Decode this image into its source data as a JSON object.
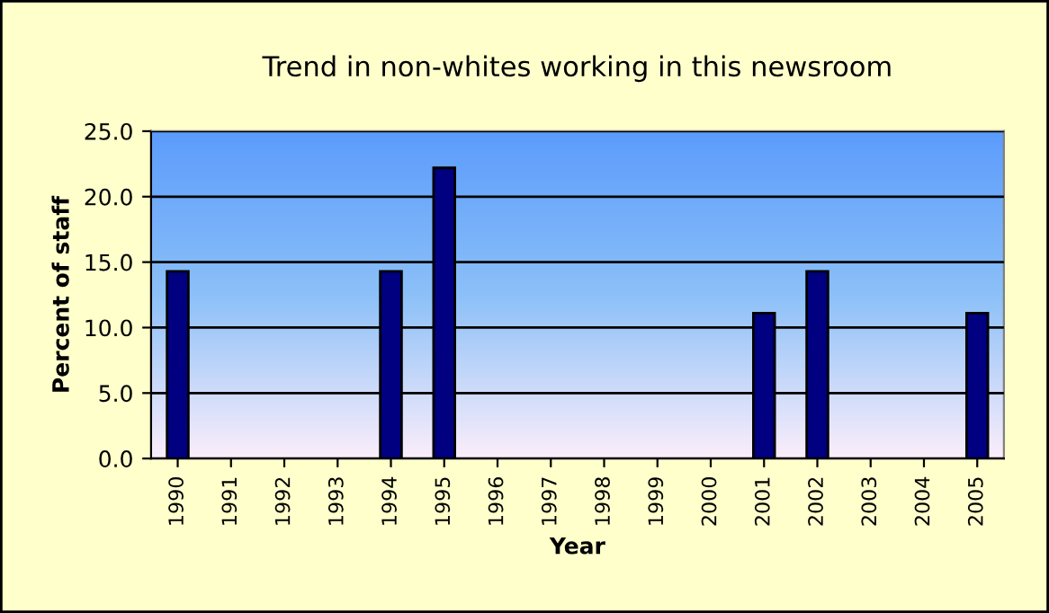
{
  "chart_data": {
    "type": "bar",
    "title": "Trend in non-whites working in this newsroom",
    "xlabel": "Year",
    "ylabel": "Percent of staff",
    "categories": [
      "1990",
      "1991",
      "1992",
      "1993",
      "1994",
      "1995",
      "1996",
      "1997",
      "1998",
      "1999",
      "2000",
      "2001",
      "2002",
      "2003",
      "2004",
      "2005"
    ],
    "values": [
      14.3,
      null,
      null,
      null,
      14.3,
      22.2,
      null,
      null,
      null,
      null,
      null,
      11.1,
      14.3,
      null,
      null,
      11.1
    ],
    "color": "#000080",
    "ylim": [
      0,
      25
    ],
    "yticks": [
      {
        "value": 0,
        "label": "0.0"
      },
      {
        "value": 5,
        "label": "5.0"
      },
      {
        "value": 10,
        "label": "10.0"
      },
      {
        "value": 15,
        "label": "15.0"
      },
      {
        "value": 20,
        "label": "20.0"
      },
      {
        "value": 25,
        "label": "25.0"
      }
    ],
    "grid": "y",
    "legend": false
  }
}
